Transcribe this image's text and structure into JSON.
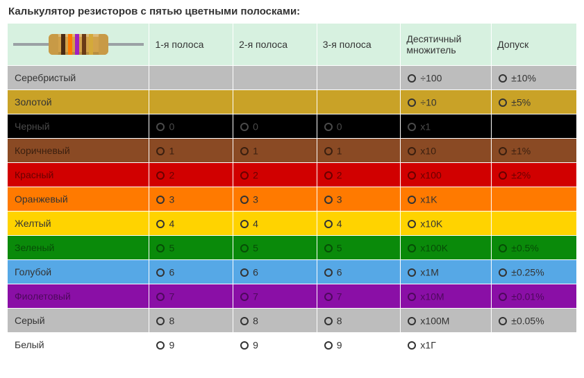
{
  "title": "Калькулятор резисторов с пятью цветными полосками:",
  "columns": {
    "label": "",
    "band1": "1-я полоса",
    "band2": "2-я полоса",
    "band3": "3-я полоса",
    "multiplier": "Десятичный множитель",
    "tolerance": "Допуск"
  },
  "illustration": {
    "lead_color": "#9aa1a4",
    "body_color": "#d2a24a",
    "cap_color": "#c89a46",
    "band_colors": [
      "#4a2b14",
      "#ff7a00",
      "#a020c0",
      "#6a3a16",
      "#d4a93a"
    ]
  },
  "rows": [
    {
      "name": "Серебристый",
      "bg": "#bdbdbd",
      "fg": "#333333",
      "band1": null,
      "band2": null,
      "band3": null,
      "multiplier": "÷100",
      "tolerance": "±10%"
    },
    {
      "name": "Золотой",
      "bg": "#c9a227",
      "fg": "#333333",
      "band1": null,
      "band2": null,
      "band3": null,
      "multiplier": "÷10",
      "tolerance": "±5%"
    },
    {
      "name": "Черный",
      "bg": "#000000",
      "fg": "#4a4a4a",
      "band1": "0",
      "band2": "0",
      "band3": "0",
      "multiplier": "x1",
      "tolerance": null
    },
    {
      "name": "Коричневый",
      "bg": "#8a4a24",
      "fg": "#3a1f0f",
      "band1": "1",
      "band2": "1",
      "band3": "1",
      "multiplier": "x10",
      "tolerance": "±1%"
    },
    {
      "name": "Красный",
      "bg": "#d10000",
      "fg": "#6a0000",
      "band1": "2",
      "band2": "2",
      "band3": "2",
      "multiplier": "x100",
      "tolerance": "±2%"
    },
    {
      "name": "Оранжевый",
      "bg": "#ff7a00",
      "fg": "#333333",
      "band1": "3",
      "band2": "3",
      "band3": "3",
      "multiplier": "x1K",
      "tolerance": null
    },
    {
      "name": "Желтый",
      "bg": "#ffd300",
      "fg": "#333333",
      "band1": "4",
      "band2": "4",
      "band3": "4",
      "multiplier": "x10K",
      "tolerance": null
    },
    {
      "name": "Зеленый",
      "bg": "#0a8a0a",
      "fg": "#064d06",
      "band1": "5",
      "band2": "5",
      "band3": "5",
      "multiplier": "x100K",
      "tolerance": "±0.5%"
    },
    {
      "name": "Голубой",
      "bg": "#56a8e6",
      "fg": "#333333",
      "band1": "6",
      "band2": "6",
      "band3": "6",
      "multiplier": "x1M",
      "tolerance": "±0.25%"
    },
    {
      "name": "Фиолетовый",
      "bg": "#8a0fa6",
      "fg": "#4d085c",
      "band1": "7",
      "band2": "7",
      "band3": "7",
      "multiplier": "x10M",
      "tolerance": "±0.01%"
    },
    {
      "name": "Серый",
      "bg": "#bdbdbd",
      "fg": "#333333",
      "band1": "8",
      "band2": "8",
      "band3": "8",
      "multiplier": "x100M",
      "tolerance": "±0.05%"
    },
    {
      "name": "Белый",
      "bg": "#ffffff",
      "fg": "#333333",
      "band1": "9",
      "band2": "9",
      "band3": "9",
      "multiplier": "x1Г",
      "tolerance": null
    }
  ]
}
